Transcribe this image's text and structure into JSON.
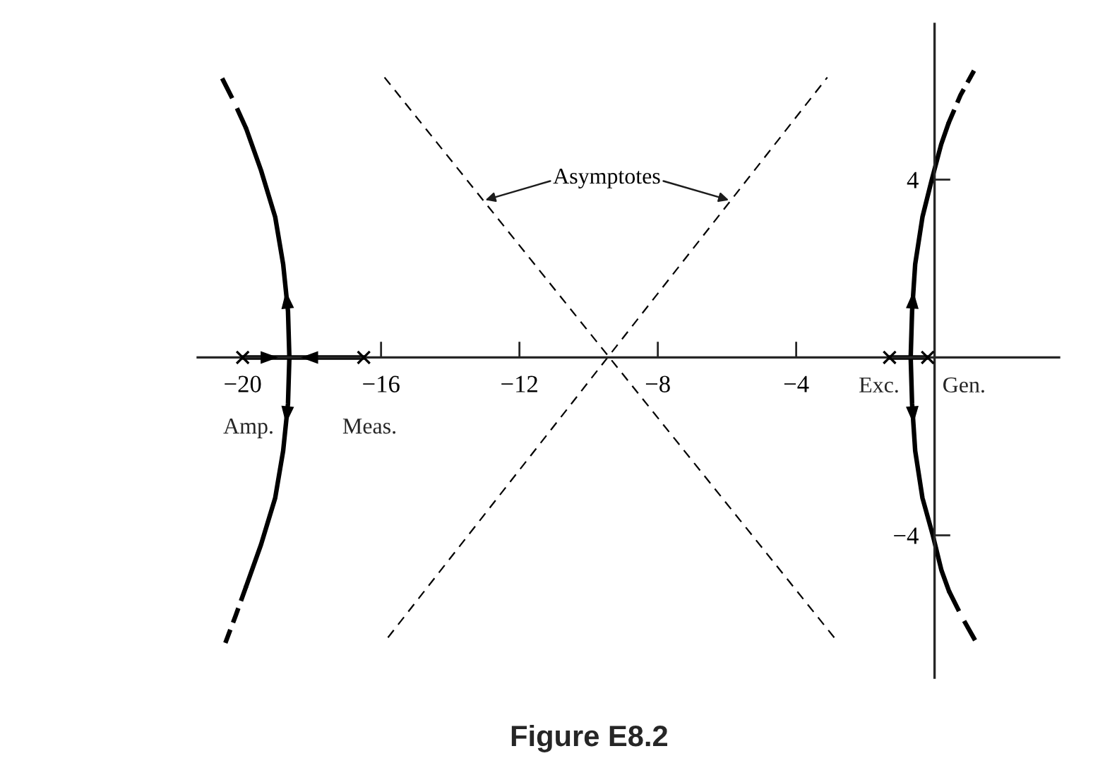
{
  "chart_data": {
    "type": "line",
    "title": "Figure E8.2",
    "xlim": [
      -21.3,
      3.6
    ],
    "ylim": [
      -7.2,
      7.5
    ],
    "xticks": [
      {
        "value": -20,
        "label": "−20"
      },
      {
        "value": -16,
        "label": "−16"
      },
      {
        "value": -12,
        "label": "−12"
      },
      {
        "value": -8,
        "label": "−8"
      },
      {
        "value": -4,
        "label": "−4"
      }
    ],
    "yticks": [
      4,
      {
        "value": -4,
        "label": "−4"
      }
    ],
    "series": [
      {
        "color": "#000000",
        "line_style": "solid",
        "x": [
          -20,
          -18.65,
          -16.5
        ],
        "values": [
          0,
          0,
          0
        ]
      },
      {
        "color": "#000000",
        "line_style": "solid",
        "x": [
          -1.3,
          -0.2
        ],
        "values": [
          0,
          0
        ]
      },
      {
        "color": "#000000",
        "line_style": "solid",
        "x": [
          -19.9,
          -19.47,
          -19.06,
          -18.83,
          -18.69,
          -18.65,
          -18.69,
          -18.83,
          -19.06,
          -19.47,
          -19.9
        ],
        "values": [
          5.15,
          4.21,
          3.16,
          2.1,
          1.04,
          0,
          -1.04,
          -2.1,
          -3.16,
          -4.21,
          -5.15
        ]
      },
      {
        "color": "#000000",
        "line_style": "dashed",
        "x": [
          -19.9,
          -20.25,
          -20.62
        ],
        "values": [
          5.15,
          5.75,
          6.32
        ]
      },
      {
        "color": "#000000",
        "line_style": "dashed",
        "x": [
          -19.9,
          -20.2,
          -20.5
        ],
        "values": [
          -5.15,
          -5.8,
          -6.42
        ]
      },
      {
        "color": "#000000",
        "line_style": "solid",
        "x": [
          0.4,
          0.19,
          -0.08,
          -0.35,
          -0.56,
          -0.65,
          -0.69,
          -0.65,
          -0.56,
          -0.35,
          -0.05,
          0.2,
          0.42
        ],
        "values": [
          5.26,
          4.79,
          4.0,
          3.16,
          2.1,
          1.04,
          0,
          -1.04,
          -2.1,
          -3.16,
          -4.0,
          -4.79,
          -5.26
        ]
      },
      {
        "color": "#000000",
        "line_style": "dashed",
        "x": [
          0.4,
          0.75,
          1.14
        ],
        "values": [
          5.26,
          5.9,
          6.45
        ]
      },
      {
        "color": "#000000",
        "line_style": "dashed",
        "x": [
          0.42,
          0.8,
          1.2
        ],
        "values": [
          -5.26,
          -5.85,
          -6.4
        ]
      },
      {
        "name": "Asymptotes",
        "color": "#000000",
        "line_style": "dashed",
        "x": [
          -15.9,
          -2.9,
          -9.4,
          -15.8,
          -3.1
        ],
        "values": [
          6.3,
          -6.3,
          null,
          -6.3,
          6.3
        ]
      },
      {
        "type": "scatter",
        "color": "#000000",
        "marker": "cross",
        "x": [
          -20,
          -16.5,
          -1.3,
          -0.2
        ],
        "values": [
          0,
          0,
          0,
          0
        ]
      }
    ],
    "annotations": [
      {
        "text": "Amp.",
        "x": -20,
        "y": 0
      },
      {
        "text": "Meas.",
        "x": -16.5,
        "y": 0
      },
      {
        "text": "Exc.",
        "x": -1.3,
        "y": 0
      },
      {
        "text": "Gen.",
        "x": -0.2,
        "y": 0
      }
    ]
  }
}
